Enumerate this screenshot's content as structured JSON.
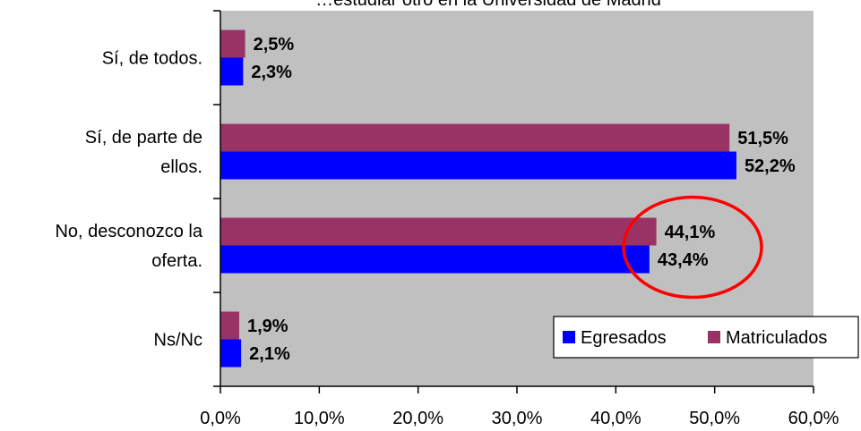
{
  "chart_data": {
    "type": "bar",
    "orientation": "horizontal",
    "title": "…estudiar otro en la Universidad de Madrid",
    "categories": [
      [
        "Sí, de todos."
      ],
      [
        "Sí, de parte de",
        "ellos."
      ],
      [
        "No, desconozco la",
        "oferta."
      ],
      [
        "Ns/Nc"
      ]
    ],
    "series": [
      {
        "name": "Egresados",
        "color": "#0000FF",
        "values": [
          2.3,
          52.2,
          43.4,
          2.1
        ]
      },
      {
        "name": "Matriculados",
        "color": "#993366",
        "values": [
          2.5,
          51.5,
          44.1,
          1.9
        ]
      }
    ],
    "data_labels": {
      "Egresados": [
        "2,3%",
        "52,2%",
        "43,4%",
        "2,1%"
      ],
      "Matriculados": [
        "2,5%",
        "51,5%",
        "44,1%",
        "1,9%"
      ]
    },
    "xlim": [
      0,
      60
    ],
    "xticks": [
      0,
      10,
      20,
      30,
      40,
      50,
      60
    ],
    "xtick_labels": [
      "0,0%",
      "10,0%",
      "20,0%",
      "30,0%",
      "40,0%",
      "50,0%",
      "60,0%"
    ],
    "plot_background": "#C0C0C0",
    "grid": false,
    "legend": {
      "placement": "bottom-right",
      "items": [
        "Egresados",
        "Matriculados"
      ]
    },
    "annotation": {
      "type": "ellipse",
      "color": "#FF0000",
      "category_index": 2
    }
  }
}
